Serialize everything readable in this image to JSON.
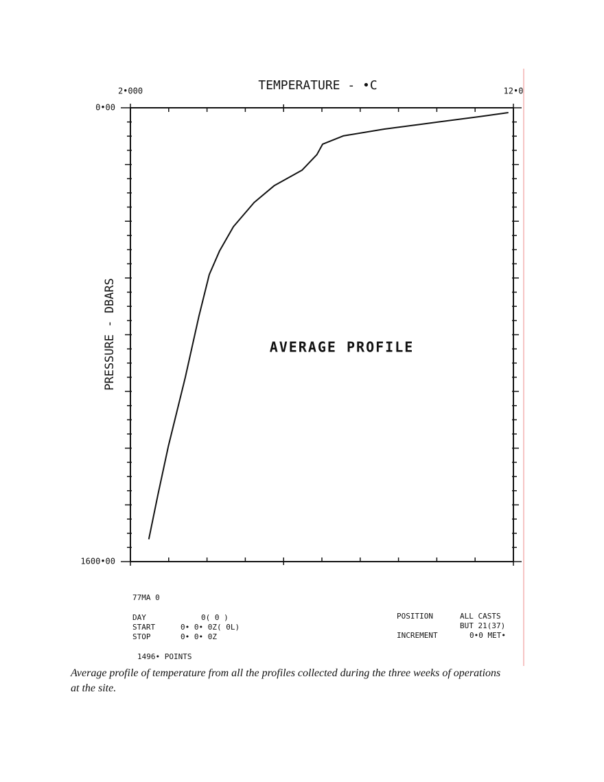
{
  "chart_data": {
    "type": "line",
    "title": "TEMPERATURE - •C",
    "y_label": "PRESSURE - DBARS",
    "annotation": "AVERAGE PROFILE",
    "x": [
      11.87,
      11.13,
      9.71,
      8.63,
      7.56,
      7.02,
      6.87,
      6.48,
      5.76,
      5.23,
      4.69,
      4.33,
      4.06,
      3.79,
      3.43,
      2.99,
      2.72,
      2.48
    ],
    "values": [
      17,
      31,
      56,
      75,
      99,
      128,
      165,
      220,
      274,
      334,
      419,
      504,
      588,
      734,
      952,
      1194,
      1363,
      1521
    ],
    "color": "#111111",
    "xlim": [
      2,
      12
    ],
    "xticks": [
      {
        "value": 2,
        "label": "2•000"
      },
      {
        "value": 12,
        "label": "12•0"
      }
    ],
    "x_minor_ticks": [
      3,
      4,
      5,
      6,
      7,
      8,
      9,
      10,
      11
    ],
    "ylim": [
      0,
      1600
    ],
    "yticks": [
      {
        "value": 0,
        "label": "0•00"
      },
      {
        "value": 1600,
        "label": "1600•00"
      }
    ],
    "y_minor_ticks": [
      50,
      100,
      150,
      200,
      250,
      300,
      350,
      400,
      450,
      500,
      550,
      600,
      650,
      700,
      750,
      800,
      850,
      900,
      950,
      1000,
      1050,
      1100,
      1150,
      1200,
      1250,
      1300,
      1350,
      1400,
      1450,
      1500,
      1550
    ],
    "y_inverted": true
  },
  "footer": {
    "id": "77MA 0",
    "day_label": "DAY",
    "day": "0( 0 )",
    "start_label": "START",
    "start": "0• 0• 0Z( 0L)",
    "stop_label": "STOP",
    "stop": "0• 0• 0Z",
    "points": "1496• POINTS",
    "position_label": "POSITION",
    "position_1": "ALL CASTS",
    "position_2": "BUT 21(37)",
    "increment_label": "INCREMENT",
    "increment": "0•0 MET•"
  },
  "caption": "Average profile of temperature from all the profiles collected during the three weeks of operations at the site."
}
